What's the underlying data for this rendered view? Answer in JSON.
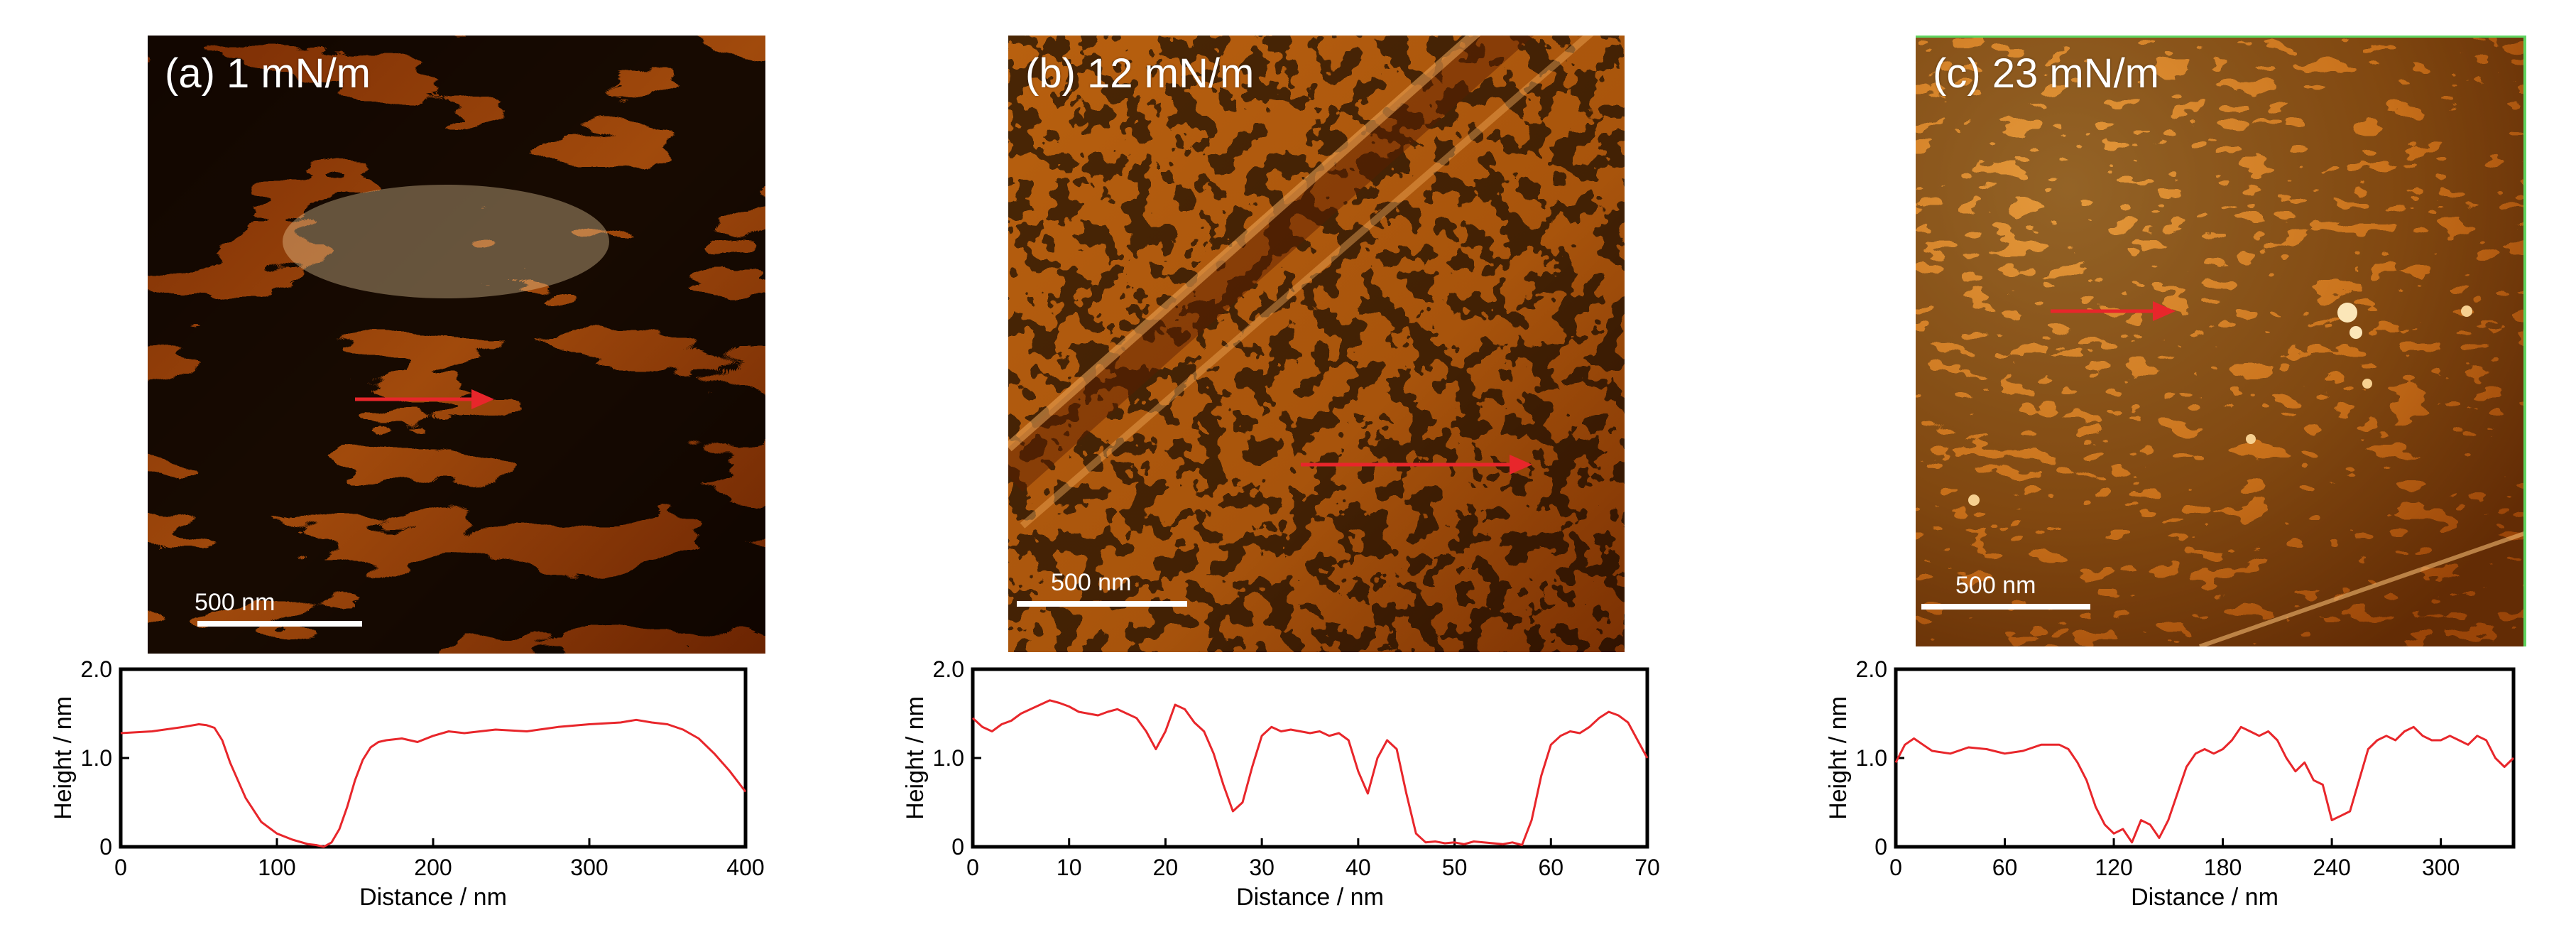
{
  "panels": [
    {
      "id": "a",
      "image_label": "(a) 1 mN/m",
      "scale_bar_label": "500 nm",
      "colors": {
        "dark": "#5a1d00",
        "mid": "#b05410",
        "bright": "#f6c275"
      }
    },
    {
      "id": "b",
      "image_label": "(b) 12 mN/m",
      "scale_bar_label": "500 nm",
      "colors": {
        "dark": "#702600",
        "mid": "#c46a14",
        "bright": "#efa850"
      }
    },
    {
      "id": "c",
      "image_label": "(c) 23 mN/m",
      "scale_bar_label": "500 nm",
      "colors": {
        "dark": "#8a3300",
        "mid": "#d17a1e",
        "bright": "#f6c070"
      }
    }
  ],
  "line_color": "#e8262b",
  "chart_data": [
    {
      "type": "line",
      "xlabel": "Distance / nm",
      "ylabel": "Height / nm",
      "xlim": [
        0,
        400
      ],
      "ylim": [
        0,
        2.0
      ],
      "x_ticks": [
        0,
        100,
        200,
        300,
        400
      ],
      "y_ticks": [
        "0",
        "1.0",
        "2.0"
      ],
      "series": [
        {
          "x": [
            0,
            20,
            40,
            50,
            55,
            60,
            65,
            70,
            80,
            90,
            100,
            110,
            120,
            125,
            130,
            135,
            140,
            145,
            150,
            155,
            160,
            165,
            170,
            180,
            190,
            200,
            210,
            220,
            240,
            260,
            280,
            300,
            320,
            330,
            340,
            350,
            360,
            370,
            380,
            390,
            400
          ],
          "y": [
            1.28,
            1.3,
            1.35,
            1.38,
            1.37,
            1.34,
            1.2,
            0.95,
            0.55,
            0.28,
            0.15,
            0.08,
            0.03,
            0.02,
            0.0,
            0.05,
            0.2,
            0.45,
            0.75,
            0.98,
            1.12,
            1.18,
            1.2,
            1.22,
            1.18,
            1.25,
            1.3,
            1.28,
            1.32,
            1.3,
            1.35,
            1.38,
            1.4,
            1.43,
            1.4,
            1.38,
            1.32,
            1.22,
            1.05,
            0.85,
            0.62
          ]
        }
      ]
    },
    {
      "type": "line",
      "xlabel": "Distance / nm",
      "ylabel": "Height / nm",
      "xlim": [
        0,
        70
      ],
      "ylim": [
        0,
        2.0
      ],
      "x_ticks": [
        0,
        10,
        20,
        30,
        40,
        50,
        60,
        70
      ],
      "y_ticks": [
        "0",
        "1.0",
        "2.0"
      ],
      "series": [
        {
          "x": [
            0,
            1,
            2,
            3,
            4,
            5,
            6,
            7,
            8,
            9,
            10,
            11,
            12,
            13,
            14,
            15,
            16,
            17,
            18,
            19,
            20,
            21,
            22,
            23,
            24,
            25,
            26,
            27,
            28,
            29,
            30,
            31,
            32,
            33,
            34,
            35,
            36,
            37,
            38,
            39,
            40,
            41,
            42,
            43,
            44,
            45,
            46,
            47,
            48,
            49,
            50,
            51,
            52,
            53,
            54,
            55,
            56,
            57,
            58,
            59,
            60,
            61,
            62,
            63,
            64,
            65,
            66,
            67,
            68,
            69,
            70
          ],
          "y": [
            1.45,
            1.35,
            1.3,
            1.38,
            1.42,
            1.5,
            1.55,
            1.6,
            1.65,
            1.62,
            1.58,
            1.52,
            1.5,
            1.48,
            1.52,
            1.55,
            1.5,
            1.45,
            1.3,
            1.1,
            1.3,
            1.6,
            1.55,
            1.4,
            1.3,
            1.05,
            0.7,
            0.4,
            0.5,
            0.9,
            1.25,
            1.35,
            1.3,
            1.32,
            1.3,
            1.28,
            1.3,
            1.25,
            1.28,
            1.2,
            0.85,
            0.6,
            1.0,
            1.2,
            1.1,
            0.6,
            0.15,
            0.05,
            0.06,
            0.04,
            0.05,
            0.03,
            0.06,
            0.05,
            0.04,
            0.03,
            0.05,
            0.02,
            0.3,
            0.8,
            1.15,
            1.25,
            1.3,
            1.28,
            1.35,
            1.45,
            1.52,
            1.48,
            1.4,
            1.2,
            1.0
          ]
        }
      ]
    },
    {
      "type": "line",
      "xlabel": "Distance / nm",
      "ylabel": "Height / nm",
      "xlim": [
        0,
        340
      ],
      "ylim": [
        0,
        2.0
      ],
      "x_ticks": [
        0,
        60,
        120,
        180,
        240,
        300
      ],
      "y_ticks": [
        "0",
        "1.0",
        "2.0"
      ],
      "series": [
        {
          "x": [
            0,
            5,
            10,
            15,
            20,
            30,
            40,
            50,
            60,
            70,
            80,
            90,
            95,
            100,
            105,
            110,
            115,
            120,
            125,
            130,
            135,
            140,
            145,
            150,
            155,
            160,
            165,
            170,
            175,
            180,
            185,
            190,
            195,
            200,
            205,
            210,
            215,
            220,
            225,
            230,
            235,
            240,
            245,
            250,
            255,
            260,
            265,
            270,
            275,
            280,
            285,
            290,
            295,
            300,
            305,
            310,
            315,
            320,
            325,
            330,
            335,
            340
          ],
          "y": [
            0.95,
            1.15,
            1.22,
            1.15,
            1.08,
            1.05,
            1.12,
            1.1,
            1.05,
            1.08,
            1.15,
            1.15,
            1.1,
            0.95,
            0.75,
            0.45,
            0.25,
            0.15,
            0.2,
            0.05,
            0.3,
            0.25,
            0.1,
            0.3,
            0.6,
            0.9,
            1.05,
            1.1,
            1.05,
            1.1,
            1.2,
            1.35,
            1.3,
            1.25,
            1.3,
            1.2,
            1.0,
            0.85,
            0.95,
            0.75,
            0.7,
            0.3,
            0.35,
            0.4,
            0.75,
            1.1,
            1.2,
            1.25,
            1.2,
            1.3,
            1.35,
            1.25,
            1.2,
            1.2,
            1.25,
            1.2,
            1.15,
            1.25,
            1.2,
            1.0,
            0.9,
            1.0
          ]
        }
      ]
    }
  ]
}
